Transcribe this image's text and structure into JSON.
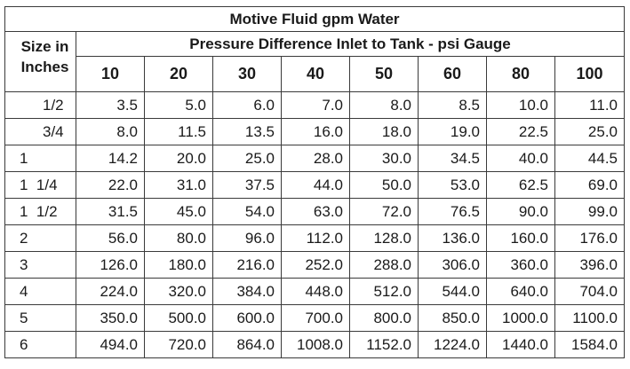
{
  "table": {
    "title": "Motive Fluid gpm Water",
    "size_header_line1": "Size in",
    "size_header_line2": "Inches",
    "pressure_header": "Pressure Difference Inlet to Tank - psi Gauge",
    "columns": [
      "10",
      "20",
      "30",
      "40",
      "50",
      "60",
      "80",
      "100"
    ],
    "rows": [
      {
        "size": "1/2",
        "values": [
          "3.5",
          "5.0",
          "6.0",
          "7.0",
          "8.0",
          "8.5",
          "10.0",
          "11.0"
        ]
      },
      {
        "size": "3/4",
        "values": [
          "8.0",
          "11.5",
          "13.5",
          "16.0",
          "18.0",
          "19.0",
          "22.5",
          "25.0"
        ]
      },
      {
        "size": "1",
        "values": [
          "14.2",
          "20.0",
          "25.0",
          "28.0",
          "30.0",
          "34.5",
          "40.0",
          "44.5"
        ]
      },
      {
        "size": "1  1/4",
        "values": [
          "22.0",
          "31.0",
          "37.5",
          "44.0",
          "50.0",
          "53.0",
          "62.5",
          "69.0"
        ]
      },
      {
        "size": "1  1/2",
        "values": [
          "31.5",
          "45.0",
          "54.0",
          "63.0",
          "72.0",
          "76.5",
          "90.0",
          "99.0"
        ]
      },
      {
        "size": "2",
        "values": [
          "56.0",
          "80.0",
          "96.0",
          "112.0",
          "128.0",
          "136.0",
          "160.0",
          "176.0"
        ]
      },
      {
        "size": "3",
        "values": [
          "126.0",
          "180.0",
          "216.0",
          "252.0",
          "288.0",
          "306.0",
          "360.0",
          "396.0"
        ]
      },
      {
        "size": "4",
        "values": [
          "224.0",
          "320.0",
          "384.0",
          "448.0",
          "512.0",
          "544.0",
          "640.0",
          "704.0"
        ]
      },
      {
        "size": "5",
        "values": [
          "350.0",
          "500.0",
          "600.0",
          "700.0",
          "800.0",
          "850.0",
          "1000.0",
          "1100.0"
        ]
      },
      {
        "size": "6",
        "values": [
          "494.0",
          "720.0",
          "864.0",
          "1008.0",
          "1152.0",
          "1224.0",
          "1440.0",
          "1584.0"
        ]
      }
    ]
  }
}
